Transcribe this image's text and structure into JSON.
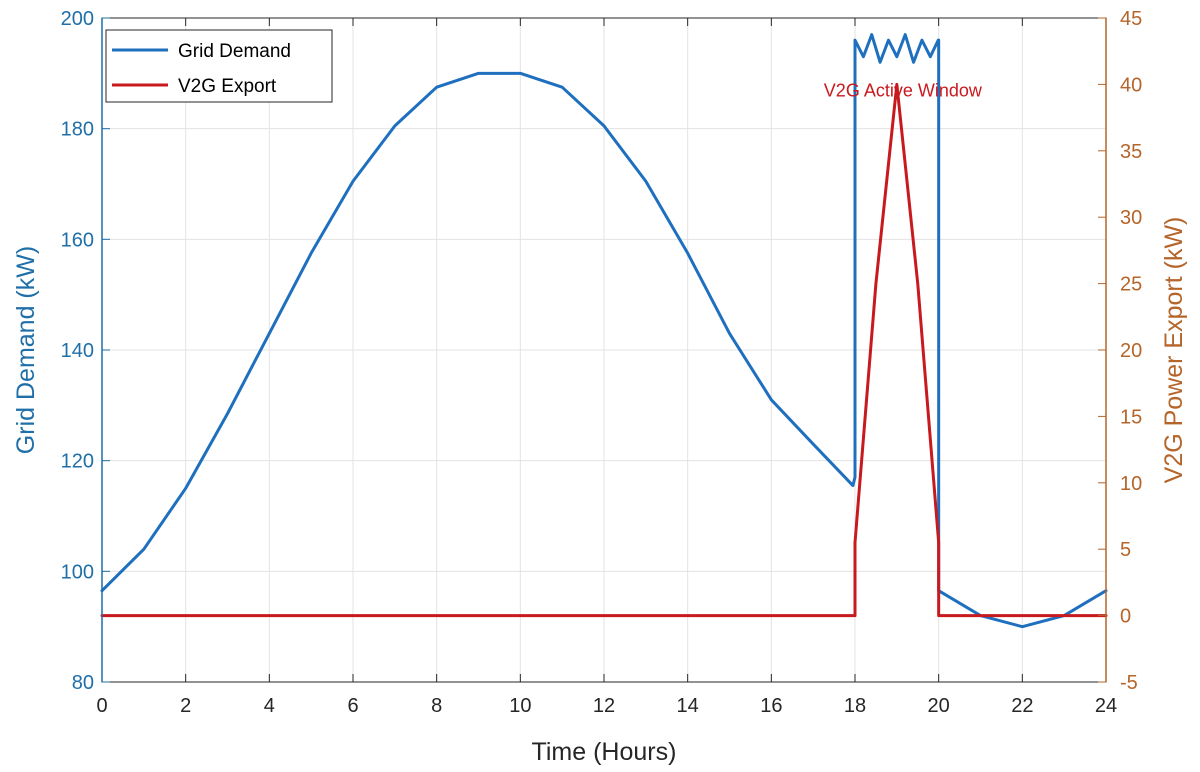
{
  "colors": {
    "left_axis": "#1f6fa8",
    "right_axis": "#b5652a",
    "grid_demand": "#1f6fbf",
    "v2g_export": "#c8191e",
    "annotation": "#c8191e"
  },
  "chart_data": {
    "type": "line",
    "title": "",
    "xlabel": "Time (Hours)",
    "ylabel_left": "Grid Demand (kW)",
    "ylabel_right": "V2G Power Export (kW)",
    "xlim": [
      0,
      24
    ],
    "ylim_left": [
      80,
      200
    ],
    "ylim_right": [
      -5,
      45
    ],
    "xticks": [
      0,
      2,
      4,
      6,
      8,
      10,
      12,
      14,
      16,
      18,
      20,
      22,
      24
    ],
    "yticks_left": [
      80,
      100,
      120,
      140,
      160,
      180,
      200
    ],
    "yticks_right": [
      -5,
      0,
      5,
      10,
      15,
      20,
      25,
      30,
      35,
      40,
      45
    ],
    "grid": true,
    "legend_position": "top-left",
    "annotation": {
      "text": "V2G Active Window",
      "x": 19,
      "y_left": 188
    },
    "series": [
      {
        "name": "Grid Demand",
        "axis": "left",
        "x": [
          0,
          1,
          2,
          3,
          4,
          5,
          6,
          7,
          8,
          9,
          10,
          11,
          12,
          13,
          14,
          15,
          16,
          17,
          17.95,
          18.0,
          18.0,
          18.2,
          18.4,
          18.6,
          18.8,
          19.0,
          19.2,
          19.4,
          19.6,
          19.8,
          19.99,
          20.0,
          20.0,
          21,
          22,
          23,
          24
        ],
        "values": [
          96.5,
          104,
          115,
          128.5,
          143,
          157.5,
          170.5,
          180.5,
          187.5,
          190,
          190,
          187.5,
          180.5,
          170.5,
          157.5,
          143,
          131,
          123,
          115.5,
          117,
          196,
          193,
          197,
          192,
          196,
          193,
          197,
          192,
          196,
          193,
          196,
          196,
          96.5,
          92,
          90,
          92,
          96.5
        ]
      },
      {
        "name": "V2G Export",
        "axis": "right",
        "x": [
          0,
          17.99,
          18.0,
          18.0,
          18.5,
          19.0,
          19.5,
          20.0,
          20.0,
          24
        ],
        "values": [
          0,
          0,
          0,
          5.5,
          25,
          40,
          25,
          5.5,
          0,
          0
        ]
      }
    ]
  }
}
